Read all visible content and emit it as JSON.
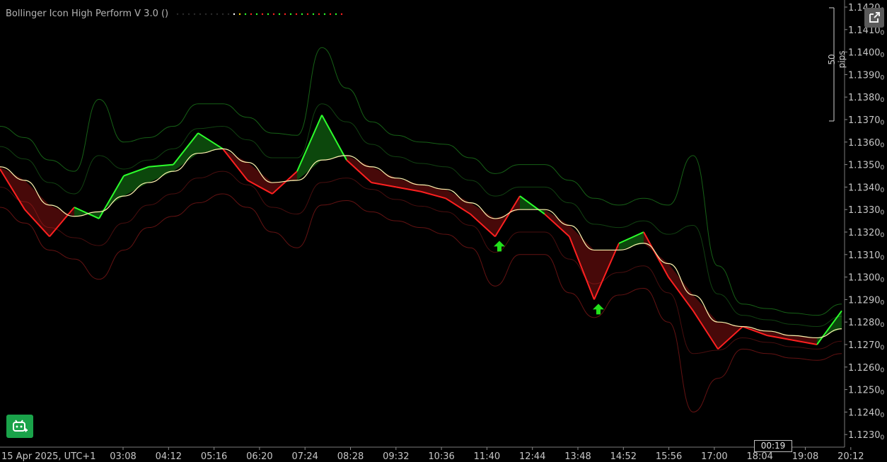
{
  "indicator": {
    "title": "Bollinger Icon High Perform V 3.0 ()"
  },
  "pips_label": "50 pips",
  "current_time_badge": "00:19",
  "icons": {
    "expand": "external-link-icon",
    "bot": "trading-bot-icon"
  },
  "colors": {
    "background": "#000000",
    "bull": "#2cff2c",
    "bear": "#ff2020",
    "mid_band": "#fff5b0",
    "signal_arrow": "#22e01b"
  },
  "chart_data": {
    "type": "line",
    "title": "",
    "xlabel": "",
    "ylabel": "",
    "date_label": "15 Apr 2025, UTC+1",
    "x_ticks": [
      "03:08",
      "04:12",
      "05:16",
      "06:20",
      "07:24",
      "08:28",
      "09:32",
      "10:36",
      "11:40",
      "12:44",
      "13:48",
      "14:52",
      "15:56",
      "17:00",
      "18:04",
      "19:08",
      "20:12"
    ],
    "y_ticks": [
      "1.1420",
      "1.1410",
      "1.1400",
      "1.1390",
      "1.1380",
      "1.1370",
      "1.1360",
      "1.1350",
      "1.1340",
      "1.1330",
      "1.1320",
      "1.1310",
      "1.1300",
      "1.1290",
      "1.1280",
      "1.1270",
      "1.1260",
      "1.1250",
      "1.1240",
      "1.1230"
    ],
    "y_tick_suffix": "0",
    "ylim": [
      1.1226,
      1.1422
    ],
    "grid": false,
    "x": [
      "02:00",
      "02:30",
      "03:08",
      "03:40",
      "04:12",
      "04:44",
      "05:16",
      "05:48",
      "06:20",
      "06:52",
      "07:24",
      "07:56",
      "08:28",
      "09:00",
      "09:32",
      "10:04",
      "10:36",
      "11:08",
      "11:40",
      "12:12",
      "12:44",
      "13:16",
      "13:48",
      "14:20",
      "14:52",
      "15:24",
      "15:56",
      "16:28",
      "17:00",
      "17:32",
      "18:04",
      "18:36",
      "19:08",
      "19:40",
      "20:12"
    ],
    "series": [
      {
        "values": [
          1.1348,
          1.133,
          1.1318,
          1.1331,
          1.1326,
          1.1345,
          1.1349,
          1.135,
          1.1364,
          1.1357,
          1.1343,
          1.1337,
          1.1347,
          1.1372,
          1.1352,
          1.1342,
          1.134,
          1.1338,
          1.1335,
          1.1328,
          1.1318,
          1.1336,
          1.1328,
          1.1318,
          1.129,
          1.1315,
          1.132,
          1.13,
          1.1285,
          1.1268,
          1.1278,
          1.1274,
          1.1272,
          1.127,
          1.1285
        ]
      },
      {
        "values": [
          1.1349,
          1.1343,
          1.1332,
          1.1327,
          1.1329,
          1.1336,
          1.1342,
          1.1347,
          1.1355,
          1.1357,
          1.1351,
          1.1342,
          1.1343,
          1.1352,
          1.1354,
          1.1349,
          1.1344,
          1.1341,
          1.1339,
          1.1333,
          1.1326,
          1.133,
          1.133,
          1.1323,
          1.1312,
          1.1312,
          1.1315,
          1.1306,
          1.1292,
          1.128,
          1.1278,
          1.1276,
          1.1274,
          1.1273,
          1.1277
        ]
      },
      {
        "values": [
          1.1367,
          1.1362,
          1.1352,
          1.1347,
          1.1379,
          1.136,
          1.1362,
          1.1367,
          1.1377,
          1.1377,
          1.1371,
          1.1364,
          1.1363,
          1.1402,
          1.1384,
          1.1369,
          1.1363,
          1.136,
          1.1359,
          1.1353,
          1.1346,
          1.135,
          1.135,
          1.1343,
          1.1335,
          1.1332,
          1.1335,
          1.1332,
          1.1354,
          1.1305,
          1.1288,
          1.1286,
          1.1284,
          1.1283,
          1.1288
        ]
      },
      {
        "values": [
          1.1331,
          1.1324,
          1.1312,
          1.1308,
          1.1299,
          1.1312,
          1.1322,
          1.1327,
          1.1333,
          1.1337,
          1.1331,
          1.132,
          1.1313,
          1.1332,
          1.1334,
          1.1329,
          1.1325,
          1.1322,
          1.1319,
          1.1313,
          1.1296,
          1.131,
          1.131,
          1.1293,
          1.1282,
          1.1292,
          1.1295,
          1.128,
          1.124,
          1.1255,
          1.1268,
          1.1266,
          1.1264,
          1.1263,
          1.1266
        ]
      }
    ]
  }
}
